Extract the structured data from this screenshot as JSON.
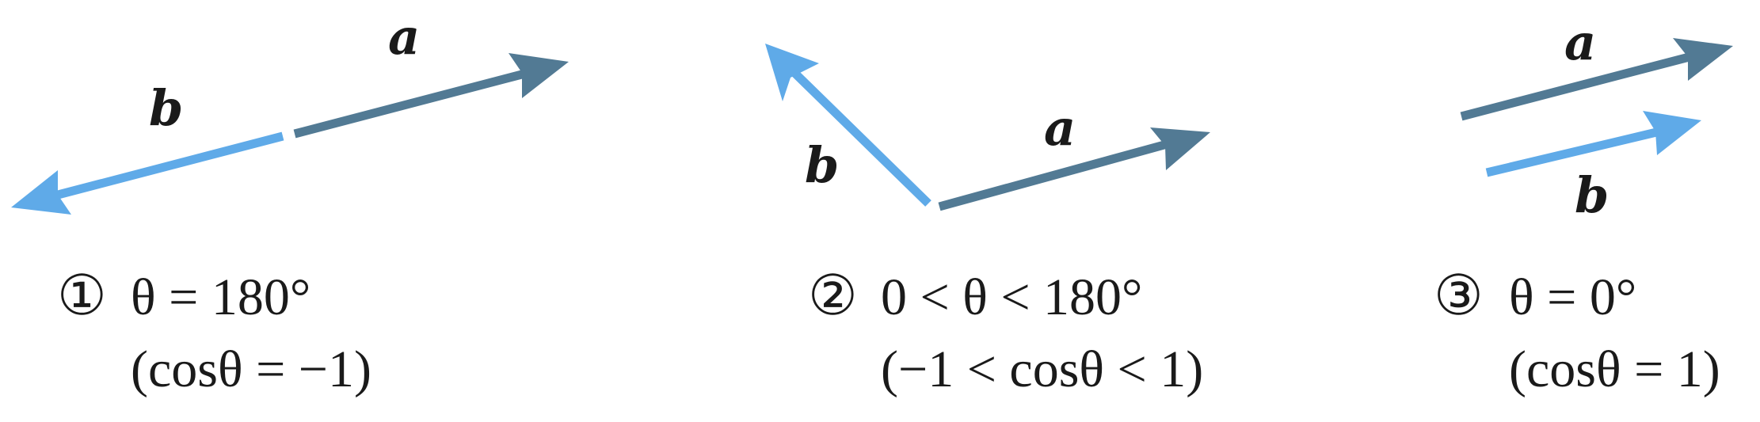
{
  "colors": {
    "vector_a": "#527a94",
    "vector_b": "#5faae8",
    "text": "#1a1a1a"
  },
  "panels": [
    {
      "number": "①",
      "condition": "θ = 180°",
      "cosine": "(cosθ = −1)",
      "label_a": "a",
      "label_b": "b"
    },
    {
      "number": "②",
      "condition": "0 < θ < 180°",
      "cosine": "(−1 < cosθ < 1)",
      "label_a": "a",
      "label_b": "b"
    },
    {
      "number": "③",
      "condition": "θ = 0°",
      "cosine": "(cosθ = 1)",
      "label_a": "a",
      "label_b": "b"
    }
  ]
}
